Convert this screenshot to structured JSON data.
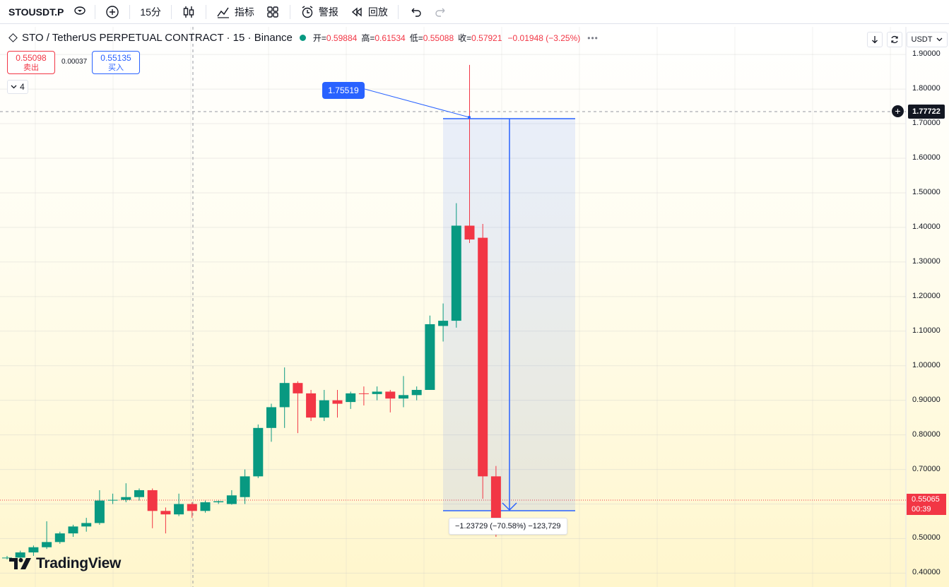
{
  "toolbar": {
    "symbol": "STOUSDT.P",
    "interval": "15分",
    "indicators_label": "指标",
    "alerts_label": "警报",
    "replay_label": "回放"
  },
  "legend": {
    "title": "STO / TetherUS PERPETUAL CONTRACT · 15 · Binance",
    "open_label": "开=",
    "open": "0.59884",
    "high_label": "高=",
    "high": "0.61534",
    "low_label": "低=",
    "low": "0.55088",
    "close_label": "收=",
    "close": "0.57921",
    "change": "−0.01948 (−3.25%)"
  },
  "trade": {
    "sell_price": "0.55098",
    "sell_label": "卖出",
    "spread": "0.00037",
    "buy_price": "0.55135",
    "buy_label": "买入"
  },
  "collapse_count": "4",
  "currency": "USDT",
  "price_axis": [
    "1.90000",
    "1.80000",
    "1.70000",
    "1.60000",
    "1.50000",
    "1.40000",
    "1.30000",
    "1.20000",
    "1.10000",
    "1.00000",
    "0.90000",
    "0.80000",
    "0.70000",
    "0.60000",
    "0.50000",
    "0.40000"
  ],
  "crosshair_price": "1.77722",
  "last_price": "0.55065",
  "countdown": "00:39",
  "callout_price": "1.75519",
  "measure_text": "−1.23729 (−70.58%) −123,729",
  "logo_text": "TradingView",
  "colors": {
    "up": "#089981",
    "down": "#f23645",
    "accent": "#2962ff"
  },
  "chart_data": {
    "type": "candlestick",
    "ylim": [
      0.36,
      1.98
    ],
    "candles": [
      {
        "o": 0.445,
        "h": 0.45,
        "l": 0.44,
        "c": 0.445
      },
      {
        "o": 0.445,
        "h": 0.465,
        "l": 0.44,
        "c": 0.46
      },
      {
        "o": 0.46,
        "h": 0.48,
        "l": 0.45,
        "c": 0.475
      },
      {
        "o": 0.475,
        "h": 0.55,
        "l": 0.47,
        "c": 0.49
      },
      {
        "o": 0.49,
        "h": 0.52,
        "l": 0.485,
        "c": 0.515
      },
      {
        "o": 0.515,
        "h": 0.54,
        "l": 0.505,
        "c": 0.535
      },
      {
        "o": 0.535,
        "h": 0.56,
        "l": 0.52,
        "c": 0.545
      },
      {
        "o": 0.545,
        "h": 0.64,
        "l": 0.54,
        "c": 0.61
      },
      {
        "o": 0.61,
        "h": 0.63,
        "l": 0.6,
        "c": 0.612
      },
      {
        "o": 0.612,
        "h": 0.66,
        "l": 0.605,
        "c": 0.62
      },
      {
        "o": 0.62,
        "h": 0.645,
        "l": 0.61,
        "c": 0.64
      },
      {
        "o": 0.64,
        "h": 0.645,
        "l": 0.53,
        "c": 0.58
      },
      {
        "o": 0.58,
        "h": 0.59,
        "l": 0.515,
        "c": 0.57
      },
      {
        "o": 0.57,
        "h": 0.63,
        "l": 0.565,
        "c": 0.6
      },
      {
        "o": 0.6,
        "h": 0.605,
        "l": 0.56,
        "c": 0.58
      },
      {
        "o": 0.58,
        "h": 0.61,
        "l": 0.575,
        "c": 0.605
      },
      {
        "o": 0.605,
        "h": 0.61,
        "l": 0.6,
        "c": 0.608
      },
      {
        "o": 0.6,
        "h": 0.64,
        "l": 0.598,
        "c": 0.625
      },
      {
        "o": 0.62,
        "h": 0.7,
        "l": 0.6,
        "c": 0.68
      },
      {
        "o": 0.68,
        "h": 0.83,
        "l": 0.675,
        "c": 0.82
      },
      {
        "o": 0.82,
        "h": 0.89,
        "l": 0.78,
        "c": 0.88
      },
      {
        "o": 0.88,
        "h": 0.995,
        "l": 0.82,
        "c": 0.95
      },
      {
        "o": 0.95,
        "h": 0.955,
        "l": 0.805,
        "c": 0.92
      },
      {
        "o": 0.92,
        "h": 0.93,
        "l": 0.84,
        "c": 0.85
      },
      {
        "o": 0.85,
        "h": 0.93,
        "l": 0.84,
        "c": 0.9
      },
      {
        "o": 0.9,
        "h": 0.93,
        "l": 0.85,
        "c": 0.89
      },
      {
        "o": 0.895,
        "h": 0.925,
        "l": 0.875,
        "c": 0.92
      },
      {
        "o": 0.92,
        "h": 0.94,
        "l": 0.885,
        "c": 0.918
      },
      {
        "o": 0.918,
        "h": 0.94,
        "l": 0.9,
        "c": 0.925
      },
      {
        "o": 0.925,
        "h": 0.93,
        "l": 0.865,
        "c": 0.905
      },
      {
        "o": 0.905,
        "h": 0.97,
        "l": 0.88,
        "c": 0.915
      },
      {
        "o": 0.915,
        "h": 0.94,
        "l": 0.9,
        "c": 0.93
      },
      {
        "o": 0.93,
        "h": 1.145,
        "l": 0.93,
        "c": 1.12
      },
      {
        "o": 1.115,
        "h": 1.18,
        "l": 1.07,
        "c": 1.13
      },
      {
        "o": 1.13,
        "h": 1.47,
        "l": 1.11,
        "c": 1.405
      },
      {
        "o": 1.405,
        "h": 1.87,
        "l": 1.355,
        "c": 1.365
      },
      {
        "o": 1.37,
        "h": 1.41,
        "l": 0.615,
        "c": 0.68
      },
      {
        "o": 0.68,
        "h": 0.71,
        "l": 0.505,
        "c": 0.551
      }
    ]
  }
}
